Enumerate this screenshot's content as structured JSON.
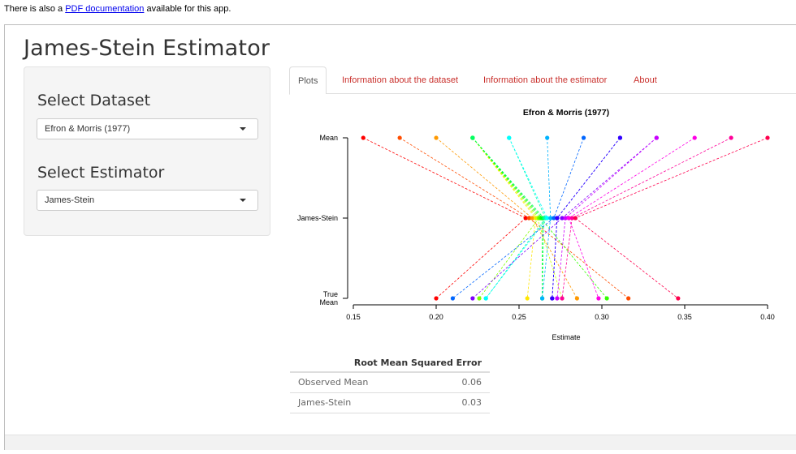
{
  "note": {
    "prefix": "There is also a ",
    "link_text": "PDF documentation",
    "suffix": " available for this app."
  },
  "app": {
    "title": "James-Stein Estimator"
  },
  "sidebar": {
    "dataset_label": "Select Dataset",
    "dataset_value": "Efron & Morris (1977)",
    "estimator_label": "Select Estimator",
    "estimator_value": "James-Stein"
  },
  "tabs": [
    {
      "label": "Plots",
      "active": true
    },
    {
      "label": "Information about the dataset",
      "active": false
    },
    {
      "label": "Information about the estimator",
      "active": false
    },
    {
      "label": "About",
      "active": false
    }
  ],
  "chart_data": {
    "type": "scatter",
    "title": "Efron & Morris (1977)",
    "xlabel": "Estimate",
    "ylabel": "",
    "xlim": [
      0.15,
      0.4
    ],
    "xticks": [
      0.15,
      0.2,
      0.25,
      0.3,
      0.35,
      0.4
    ],
    "xtick_labels": [
      "0.15",
      "0.20",
      "0.25",
      "0.30",
      "0.35",
      "0.40"
    ],
    "rows": [
      "Mean",
      "James-Stein",
      "True Mean"
    ],
    "row_labels": [
      "Mean",
      "James-Stein",
      "True\nMean"
    ],
    "grid": false,
    "lines": "dashed segments connect each point's Mean to James-Stein to True Mean",
    "points": [
      {
        "color": "#ff0000",
        "mean": 0.156,
        "js": 0.254,
        "true": 0.2
      },
      {
        "color": "#ff4d00",
        "mean": 0.178,
        "js": 0.256,
        "true": 0.316
      },
      {
        "color": "#ff9900",
        "mean": 0.2,
        "js": 0.258,
        "true": 0.285
      },
      {
        "color": "#ffe600",
        "mean": 0.222,
        "js": 0.26,
        "true": 0.255
      },
      {
        "color": "#ccff00",
        "mean": 0.222,
        "js": 0.261,
        "true": 0.276
      },
      {
        "color": "#80ff00",
        "mean": 0.222,
        "js": 0.262,
        "true": 0.226
      },
      {
        "color": "#33ff00",
        "mean": 0.222,
        "js": 0.263,
        "true": 0.303
      },
      {
        "color": "#00ff1a",
        "mean": 0.222,
        "js": 0.264,
        "true": 0.264
      },
      {
        "color": "#00ff66",
        "mean": 0.222,
        "js": 0.265,
        "true": 0.264
      },
      {
        "color": "#00ffb3",
        "mean": 0.244,
        "js": 0.266,
        "true": 0.23
      },
      {
        "color": "#00ffff",
        "mean": 0.244,
        "js": 0.267,
        "true": 0.23
      },
      {
        "color": "#00b3ff",
        "mean": 0.267,
        "js": 0.269,
        "true": 0.264
      },
      {
        "color": "#0066ff",
        "mean": 0.289,
        "js": 0.271,
        "true": 0.21
      },
      {
        "color": "#001aff",
        "mean": 0.311,
        "js": 0.273,
        "true": 0.27
      },
      {
        "color": "#3300ff",
        "mean": 0.311,
        "js": 0.273,
        "true": 0.27
      },
      {
        "color": "#8000ff",
        "mean": 0.333,
        "js": 0.276,
        "true": 0.222
      },
      {
        "color": "#cc00ff",
        "mean": 0.333,
        "js": 0.278,
        "true": 0.273
      },
      {
        "color": "#ff00e6",
        "mean": 0.356,
        "js": 0.28,
        "true": 0.298
      },
      {
        "color": "#ff0099",
        "mean": 0.378,
        "js": 0.282,
        "true": 0.276
      },
      {
        "color": "#ff004d",
        "mean": 0.4,
        "js": 0.284,
        "true": 0.346
      }
    ]
  },
  "rmse": {
    "header": "Root Mean Squared Error",
    "rows": [
      {
        "name": "Observed Mean",
        "value": "0.06"
      },
      {
        "name": "James-Stein",
        "value": "0.03"
      }
    ]
  }
}
